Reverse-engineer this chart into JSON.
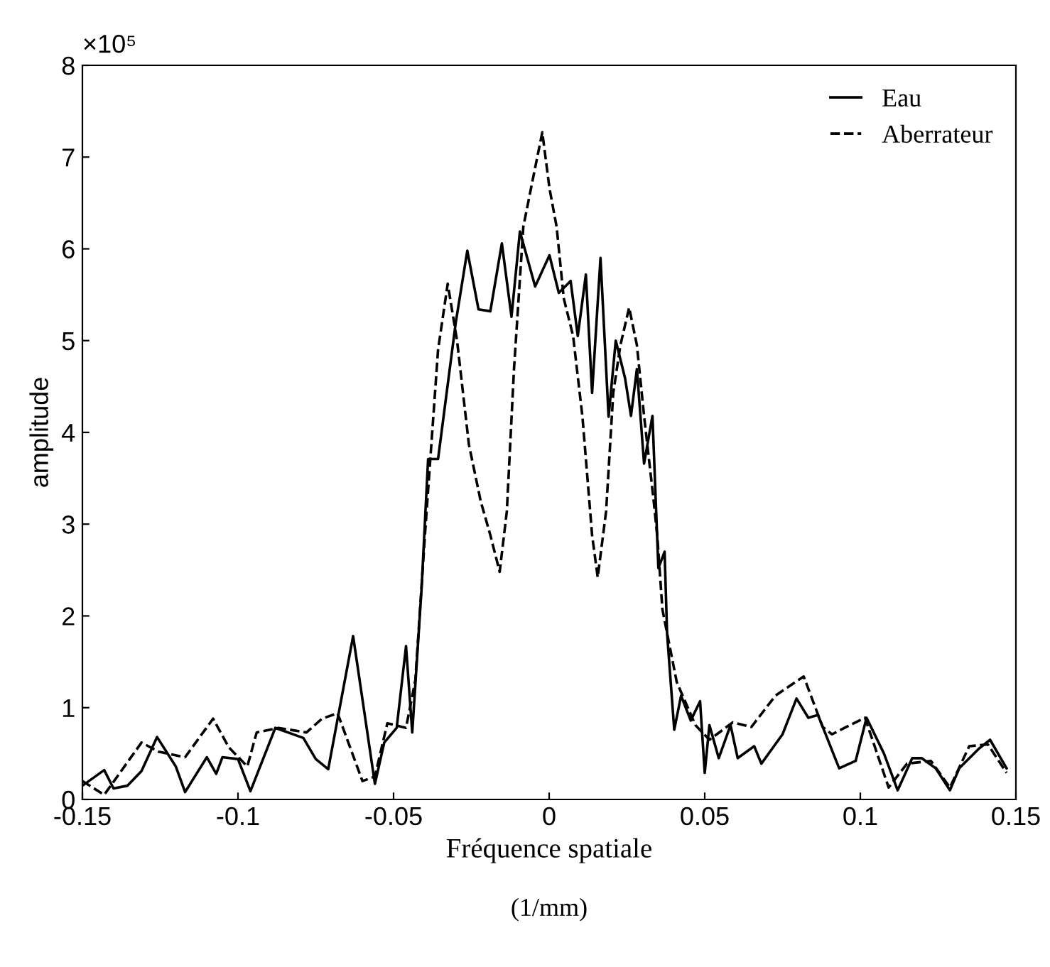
{
  "chart_data": {
    "type": "line",
    "xlabel": "Fréquence spatiale",
    "ylabel": "amplitude",
    "annotations": [
      "×10⁵",
      "(1/mm)"
    ],
    "xlim": [
      -0.15,
      0.15
    ],
    "xticks": [
      -0.15,
      -0.1,
      -0.05,
      0,
      0.05,
      0.1,
      0.15
    ],
    "ylim": [
      0,
      8
    ],
    "yticks": [
      0,
      1,
      2,
      3,
      4,
      5,
      6,
      7,
      8
    ],
    "grid": false,
    "legend": "top right",
    "marker": "none",
    "series": [
      {
        "name": "Eau",
        "color": "#000000",
        "line_style": "solid",
        "x": [
          -0.15,
          -0.143,
          -0.14,
          -0.1355,
          -0.131,
          -0.126,
          -0.12,
          -0.117,
          -0.11,
          -0.107,
          -0.105,
          -0.1,
          -0.096,
          -0.088,
          -0.079,
          -0.075,
          -0.071,
          -0.063,
          -0.056,
          -0.053,
          -0.049,
          -0.046,
          -0.044,
          -0.041,
          -0.0389,
          -0.0357,
          -0.03,
          -0.0263,
          -0.0227,
          -0.0189,
          -0.0152,
          -0.0121,
          -0.0094,
          -0.0045,
          0.0001,
          0.0031,
          0.0069,
          0.0092,
          0.0118,
          0.0138,
          0.0165,
          0.0191,
          0.0214,
          0.0244,
          0.0263,
          0.0282,
          0.0305,
          0.0332,
          0.0351,
          0.0371,
          0.0379,
          0.0402,
          0.0424,
          0.0455,
          0.0485,
          0.05,
          0.0515,
          0.0545,
          0.0583,
          0.0606,
          0.0659,
          0.0682,
          0.075,
          0.0795,
          0.0833,
          0.0864,
          0.0932,
          0.0985,
          0.102,
          0.1076,
          0.112,
          0.1167,
          0.1197,
          0.1242,
          0.1288,
          0.1318,
          0.138,
          0.1417,
          0.147
        ],
        "values": [
          0.15,
          0.32,
          0.12,
          0.15,
          0.31,
          0.68,
          0.36,
          0.08,
          0.46,
          0.28,
          0.46,
          0.44,
          0.09,
          0.78,
          0.67,
          0.44,
          0.33,
          1.78,
          0.17,
          0.62,
          0.78,
          1.67,
          0.73,
          2.3,
          3.71,
          3.71,
          5.2,
          5.98,
          5.34,
          5.32,
          6.06,
          5.26,
          6.19,
          5.59,
          5.93,
          5.52,
          5.65,
          5.05,
          5.72,
          4.43,
          5.9,
          4.17,
          5.0,
          4.59,
          4.18,
          4.69,
          3.66,
          4.18,
          2.52,
          2.7,
          1.81,
          0.76,
          1.13,
          0.86,
          1.07,
          0.29,
          0.81,
          0.45,
          0.81,
          0.45,
          0.58,
          0.39,
          0.71,
          1.1,
          0.89,
          0.92,
          0.34,
          0.42,
          0.89,
          0.5,
          0.1,
          0.45,
          0.45,
          0.34,
          0.1,
          0.34,
          0.55,
          0.65,
          0.34
        ]
      },
      {
        "name": "Aberrateur",
        "color": "#000000",
        "line_style": "dashed",
        "x": [
          -0.15,
          -0.143,
          -0.131,
          -0.1255,
          -0.117,
          -0.108,
          -0.103,
          -0.097,
          -0.094,
          -0.087,
          -0.078,
          -0.073,
          -0.068,
          -0.06,
          -0.056,
          -0.052,
          -0.046,
          -0.043,
          -0.0398,
          -0.0357,
          -0.0326,
          -0.0296,
          -0.0258,
          -0.022,
          -0.0189,
          -0.0159,
          -0.0136,
          -0.0113,
          -0.0083,
          -0.0053,
          -0.0022,
          0.0001,
          0.0024,
          0.0047,
          0.0077,
          0.0107,
          0.0138,
          0.0156,
          0.0183,
          0.0206,
          0.0229,
          0.0257,
          0.0282,
          0.0305,
          0.0336,
          0.0348,
          0.0364,
          0.041,
          0.047,
          0.0515,
          0.059,
          0.065,
          0.0727,
          0.0818,
          0.0879,
          0.0909,
          0.0955,
          0.1015,
          0.1091,
          0.115,
          0.1227,
          0.1288,
          0.135,
          0.141,
          0.147
        ],
        "values": [
          0.2,
          0.05,
          0.62,
          0.52,
          0.46,
          0.88,
          0.57,
          0.36,
          0.73,
          0.78,
          0.73,
          0.88,
          0.94,
          0.2,
          0.25,
          0.83,
          0.78,
          1.3,
          2.94,
          4.9,
          5.62,
          5.0,
          3.87,
          3.25,
          2.88,
          2.48,
          3.14,
          4.69,
          6.24,
          6.75,
          7.27,
          6.66,
          6.24,
          5.46,
          5.05,
          4.17,
          2.88,
          2.42,
          3.14,
          4.43,
          4.95,
          5.36,
          4.95,
          4.18,
          3.25,
          2.85,
          2.07,
          1.28,
          0.81,
          0.65,
          0.84,
          0.79,
          1.13,
          1.34,
          0.79,
          0.71,
          0.79,
          0.89,
          0.13,
          0.39,
          0.42,
          0.13,
          0.58,
          0.6,
          0.29
        ]
      }
    ]
  }
}
